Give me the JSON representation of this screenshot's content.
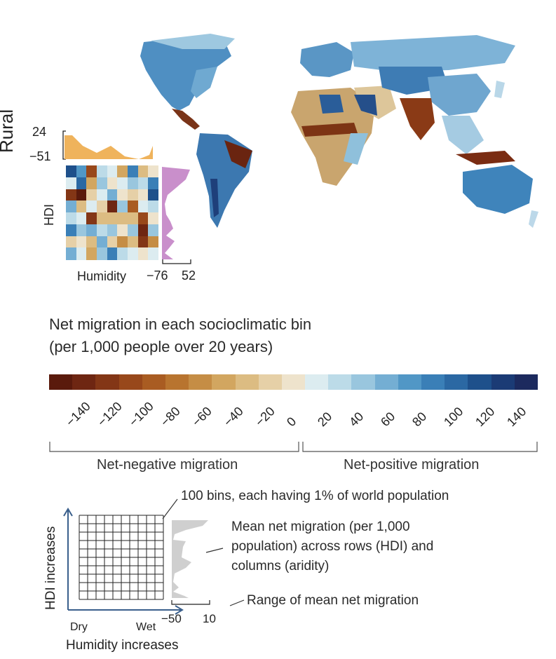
{
  "panel": {
    "row_label": "Rural",
    "top_hist": {
      "max": "24",
      "min": "−51"
    },
    "y_axis_label": "HDI",
    "x_axis_label": "Humidity",
    "right_hist": {
      "min": "−76",
      "max": "52"
    }
  },
  "legend": {
    "title_line1": "Net migration in each socioclimatic bin",
    "title_line2": "(per 1,000 people over 20 years)",
    "ticks": [
      "−140",
      "−120",
      "−100",
      "−80",
      "−60",
      "−40",
      "−20",
      "0",
      "20",
      "40",
      "60",
      "80",
      "100",
      "120",
      "140"
    ],
    "negative_label": "Net-negative migration",
    "positive_label": "Net-positive migration",
    "colors": [
      "#5a1a0c",
      "#6e2612",
      "#833616",
      "#98481b",
      "#a95c22",
      "#b8742f",
      "#c58d45",
      "#d2a660",
      "#dcbc82",
      "#e6d0a7",
      "#eee3cc",
      "#dcecf0",
      "#bcdbe8",
      "#99c6de",
      "#74aed3",
      "#5197c6",
      "#3a7fb7",
      "#2b68a3",
      "#1e508b",
      "#1b3b75",
      "#1c2a5e"
    ]
  },
  "guide": {
    "bins_label": "100 bins, each having 1% of world population",
    "mean_label_line1": "Mean net migration (per 1,000",
    "mean_label_line2": "population) across rows (HDI) and",
    "mean_label_line3": "columns (aridity)",
    "range_label": "Range of mean net migration",
    "y_axis_label": "HDI increases",
    "x_axis_label": "Humidity increases",
    "dry_label": "Dry",
    "wet_label": "Wet",
    "range_min": "−50",
    "range_max": "10"
  }
}
